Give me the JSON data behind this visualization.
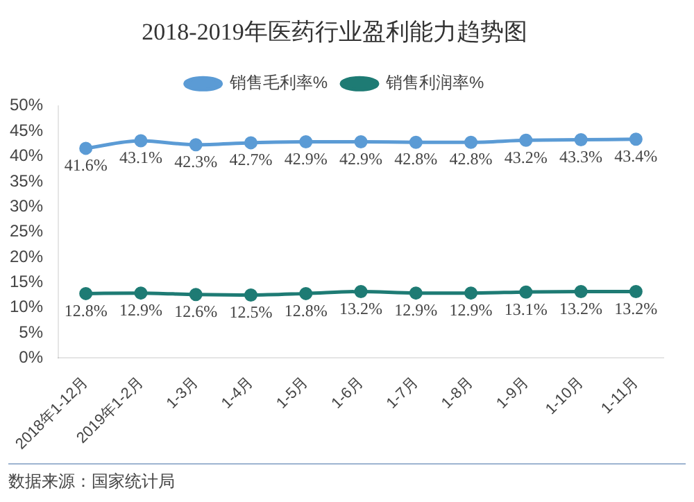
{
  "chart_data": {
    "type": "line",
    "title": "2018-2019年医药行业盈利能力趋势图",
    "categories": [
      "2018年1-12月",
      "2019年1-2月",
      "1-3月",
      "1-4月",
      "1-5月",
      "1-6月",
      "1-7月",
      "1-8月",
      "1-9月",
      "1-10月",
      "1-11月"
    ],
    "series": [
      {
        "name": "销售毛利率%",
        "color": "#5b9bd5",
        "values": [
          41.6,
          43.1,
          42.3,
          42.7,
          42.9,
          42.9,
          42.8,
          42.8,
          43.2,
          43.3,
          43.4
        ],
        "value_labels": [
          "41.6%",
          "43.1%",
          "42.3%",
          "42.7%",
          "42.9%",
          "42.9%",
          "42.8%",
          "42.8%",
          "43.2%",
          "43.3%",
          "43.4%"
        ]
      },
      {
        "name": "销售利润率%",
        "color": "#1e7b74",
        "values": [
          12.8,
          12.9,
          12.6,
          12.5,
          12.8,
          13.2,
          12.9,
          12.9,
          13.1,
          13.2,
          13.2
        ],
        "value_labels": [
          "12.8%",
          "12.9%",
          "12.6%",
          "12.5%",
          "12.8%",
          "13.2%",
          "12.9%",
          "12.9%",
          "13.1%",
          "13.2%",
          "13.2%"
        ]
      }
    ],
    "ylim": [
      0,
      50
    ],
    "yticks": [
      {
        "value": 0,
        "label": "0%"
      },
      {
        "value": 5,
        "label": "5%"
      },
      {
        "value": 10,
        "label": "10%"
      },
      {
        "value": 15,
        "label": "15%"
      },
      {
        "value": 20,
        "label": "20%"
      },
      {
        "value": 25,
        "label": "25%"
      },
      {
        "value": 30,
        "label": "30%"
      },
      {
        "value": 35,
        "label": "35%"
      },
      {
        "value": 40,
        "label": "40%"
      },
      {
        "value": 45,
        "label": "45%"
      },
      {
        "value": 50,
        "label": "50%"
      }
    ],
    "grid": false,
    "legend": "top",
    "marker": "circle",
    "line_style": "solid",
    "annotations": [
      "数据来源：国家统计局"
    ]
  }
}
